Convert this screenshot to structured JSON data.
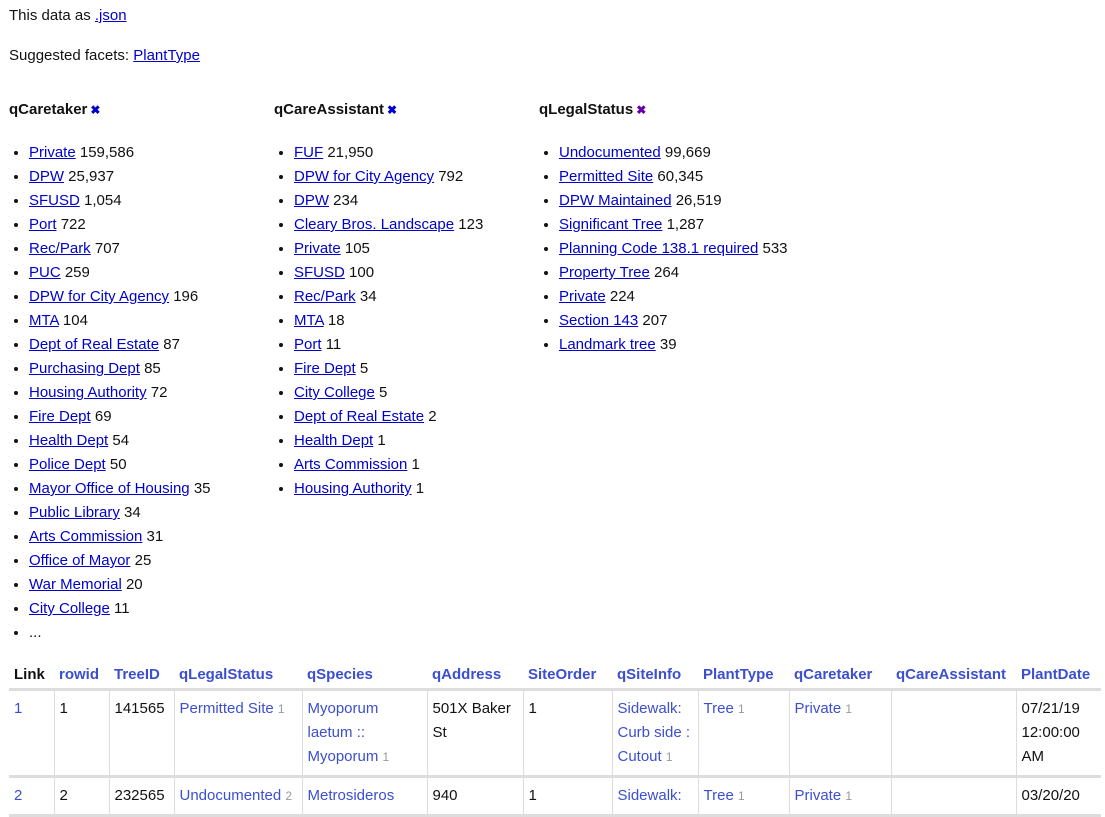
{
  "json_line": {
    "prefix": "This data as ",
    "link": ".json"
  },
  "suggested": {
    "prefix": "Suggested facets: ",
    "link": "PlantType"
  },
  "facets": [
    {
      "title": "qCaretaker",
      "items": [
        [
          "Private",
          "159,586"
        ],
        [
          "DPW",
          "25,937"
        ],
        [
          "SFUSD",
          "1,054"
        ],
        [
          "Port",
          "722"
        ],
        [
          "Rec/Park",
          "707"
        ],
        [
          "PUC",
          "259"
        ],
        [
          "DPW for City Agency",
          "196"
        ],
        [
          "MTA",
          "104"
        ],
        [
          "Dept of Real Estate",
          "87"
        ],
        [
          "Purchasing Dept",
          "85"
        ],
        [
          "Housing Authority",
          "72"
        ],
        [
          "Fire Dept",
          "69"
        ],
        [
          "Health Dept",
          "54"
        ],
        [
          "Police Dept",
          "50"
        ],
        [
          "Mayor Office of Housing",
          "35"
        ],
        [
          "Public Library",
          "34"
        ],
        [
          "Arts Commission",
          "31"
        ],
        [
          "Office of Mayor",
          "25"
        ],
        [
          "War Memorial",
          "20"
        ],
        [
          "City College",
          "11"
        ]
      ],
      "more": "..."
    },
    {
      "title": "qCareAssistant",
      "items": [
        [
          "FUF",
          "21,950"
        ],
        [
          "DPW for City Agency",
          "792"
        ],
        [
          "DPW",
          "234"
        ],
        [
          "Cleary Bros. Landscape",
          "123"
        ],
        [
          "Private",
          "105"
        ],
        [
          "SFUSD",
          "100"
        ],
        [
          "Rec/Park",
          "34"
        ],
        [
          "MTA",
          "18"
        ],
        [
          "Port",
          "11"
        ],
        [
          "Fire Dept",
          "5"
        ],
        [
          "City College",
          "5"
        ],
        [
          "Dept of Real Estate",
          "2"
        ],
        [
          "Health Dept",
          "1"
        ],
        [
          "Arts Commission",
          "1"
        ],
        [
          "Housing Authority",
          "1"
        ]
      ]
    },
    {
      "title": "qLegalStatus",
      "items": [
        [
          "Undocumented",
          "99,669"
        ],
        [
          "Permitted Site",
          "60,345"
        ],
        [
          "DPW Maintained",
          "26,519"
        ],
        [
          "Significant Tree",
          "1,287"
        ],
        [
          "Planning Code 138.1 required",
          "533"
        ],
        [
          "Property Tree",
          "264"
        ],
        [
          "Private",
          "224"
        ],
        [
          "Section 143",
          "207"
        ],
        [
          "Landmark tree",
          "39"
        ]
      ]
    }
  ],
  "table": {
    "columns": [
      "Link",
      "rowid",
      "TreeID",
      "qLegalStatus",
      "qSpecies",
      "qAddress",
      "SiteOrder",
      "qSiteInfo",
      "PlantType",
      "qCaretaker",
      "qCareAssistant",
      "PlantDate"
    ],
    "rows": [
      {
        "link": "1",
        "rowid": "1",
        "treeid": "141565",
        "legal": "Permitted Site",
        "legal_n": "1",
        "species": "Myoporum laetum :: Myoporum",
        "species_n": "1",
        "address": "501X Baker St",
        "siteorder": "1",
        "siteinfo": "Sidewalk: Curb side : Cutout",
        "siteinfo_n": "1",
        "planttype": "Tree",
        "planttype_n": "1",
        "caretaker": "Private",
        "caretaker_n": "1",
        "assistant": "",
        "date": "07/21/19 12:00:00 AM"
      },
      {
        "link": "2",
        "rowid": "2",
        "treeid": "232565",
        "legal": "Undocumented",
        "legal_n": "2",
        "species": "Metrosideros",
        "species_n": "",
        "address": "940",
        "siteorder": "1",
        "siteinfo": "Sidewalk:",
        "siteinfo_n": "",
        "planttype": "Tree",
        "planttype_n": "1",
        "caretaker": "Private",
        "caretaker_n": "1",
        "assistant": "",
        "date": "03/20/20"
      }
    ]
  }
}
